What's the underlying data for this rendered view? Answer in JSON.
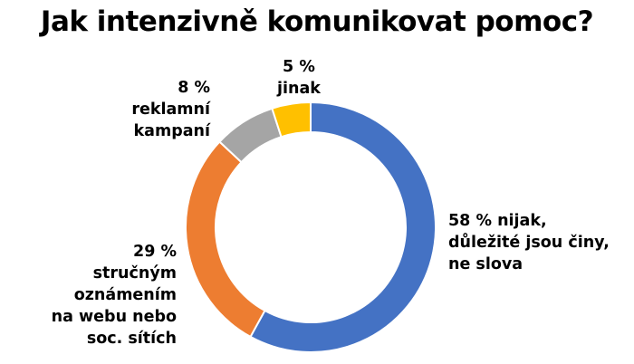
{
  "chart_data": {
    "type": "pie",
    "variant": "donut",
    "title": "Jak intenzivně komunikovat pomoc?",
    "slices": [
      {
        "label": [
          "58 % nijak,",
          "důležité jsou činy,",
          "ne slova"
        ],
        "value": 58,
        "color": "#4472C4"
      },
      {
        "label": [
          "29 %",
          "stručným",
          "oznámením",
          "na webu nebo",
          "soc. sítích"
        ],
        "value": 29,
        "color": "#ED7D31"
      },
      {
        "label": [
          "8 %",
          "reklamní",
          "kampaní"
        ],
        "value": 8,
        "color": "#A5A5A5"
      },
      {
        "label": [
          "5 %",
          "jinak"
        ],
        "value": 5,
        "color": "#FFC000"
      }
    ],
    "legend": "none"
  }
}
